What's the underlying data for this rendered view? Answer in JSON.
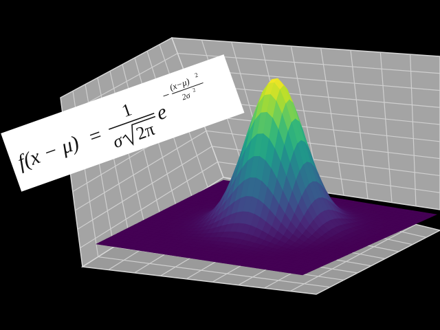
{
  "formula": {
    "lhs": "f(x − μ)",
    "equals": "=",
    "numerator": "1",
    "sigma": "σ",
    "radicand": "2π",
    "base": "e",
    "exponent_sign": "−",
    "exponent_numerator": "(x−μ)",
    "exponent_numerator_power": "2",
    "exponent_denominator": "2σ",
    "exponent_denominator_power": "2"
  }
}
